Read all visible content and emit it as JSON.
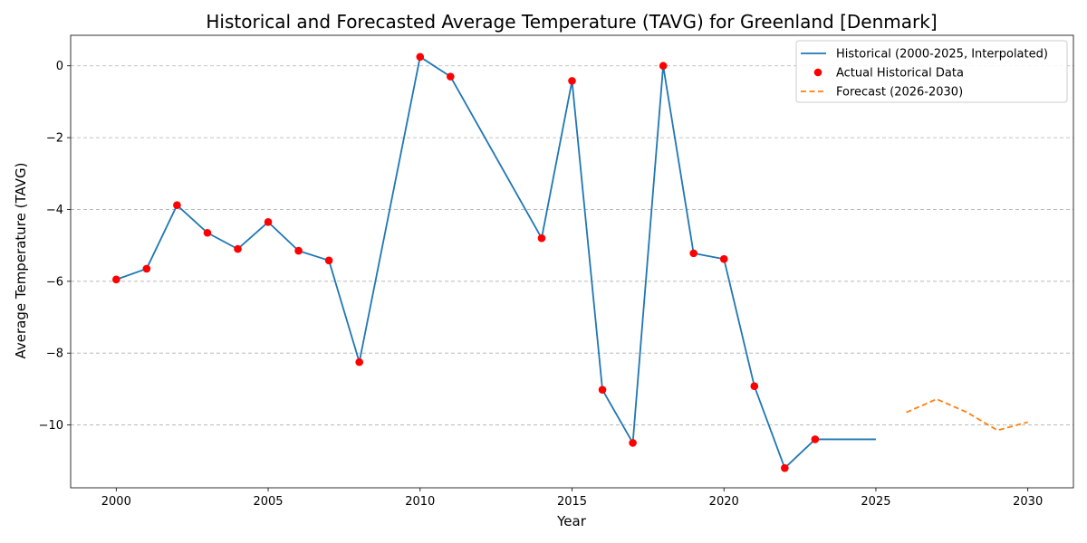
{
  "chart_data": {
    "type": "line",
    "title": "Historical and Forecasted Average Temperature (TAVG) for Greenland [Denmark]",
    "xlabel": "Year",
    "ylabel": "Average Temperature (TAVG)",
    "xlim": [
      1998.5,
      2031.5
    ],
    "ylim": [
      -11.75,
      0.85
    ],
    "x_ticks": [
      2000,
      2005,
      2010,
      2015,
      2020,
      2025,
      2030
    ],
    "y_ticks": [
      0,
      -2,
      -4,
      -6,
      -8,
      -10
    ],
    "grid": "horizontal dashed",
    "legend_position": "top-right",
    "series": [
      {
        "name": "Historical (2000-2025, Interpolated)",
        "style": "line",
        "color": "#1f77b4",
        "x": [
          2000,
          2001,
          2002,
          2003,
          2004,
          2005,
          2006,
          2007,
          2008,
          2010,
          2011,
          2014,
          2015,
          2016,
          2017,
          2018,
          2019,
          2020,
          2021,
          2022,
          2023,
          2024,
          2025
        ],
        "y": [
          -5.95,
          -5.65,
          -3.88,
          -4.65,
          -5.1,
          -4.35,
          -5.15,
          -5.42,
          -8.25,
          0.25,
          -0.3,
          -4.8,
          -0.42,
          -9.02,
          -10.5,
          0.0,
          -5.22,
          -5.38,
          -8.92,
          -11.2,
          -10.4,
          -10.4,
          -10.4
        ]
      },
      {
        "name": "Actual Historical Data",
        "style": "scatter",
        "color": "#ff0000",
        "x": [
          2000,
          2001,
          2002,
          2003,
          2004,
          2005,
          2006,
          2007,
          2008,
          2010,
          2011,
          2014,
          2015,
          2016,
          2017,
          2018,
          2019,
          2020,
          2021,
          2022,
          2023
        ],
        "y": [
          -5.95,
          -5.65,
          -3.88,
          -4.65,
          -5.1,
          -4.35,
          -5.15,
          -5.42,
          -8.25,
          0.25,
          -0.3,
          -4.8,
          -0.42,
          -9.02,
          -10.5,
          0.0,
          -5.22,
          -5.38,
          -8.92,
          -11.2,
          -10.4
        ]
      },
      {
        "name": "Forecast (2026-2030)",
        "style": "dashed-line",
        "color": "#ff7f0e",
        "x": [
          2026,
          2027,
          2028,
          2029,
          2030
        ],
        "y": [
          -9.65,
          -9.28,
          -9.65,
          -10.15,
          -9.92
        ]
      }
    ]
  }
}
